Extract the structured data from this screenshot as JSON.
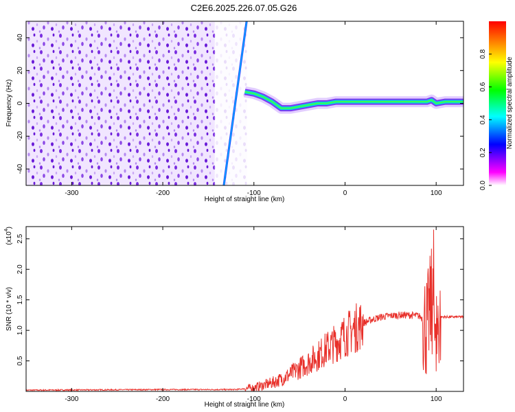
{
  "figure_title": "C2E6.2025.226.07.05.G26",
  "colors": {
    "snr_line": "#e8302a",
    "track_low": "#6a1bd8",
    "colorbar": [
      "#ffffff",
      "#ff00ff",
      "#0000ff",
      "#00ffff",
      "#00ff00",
      "#ffff00",
      "#ff0000"
    ]
  },
  "chart_data": [
    {
      "type": "heatmap",
      "title": "",
      "xlabel": "Height of straight line (km)",
      "ylabel": "Frequency (Hz)",
      "xlim": [
        -350,
        130
      ],
      "ylim": [
        -50,
        50
      ],
      "x_ticks": [
        "-300",
        "-200",
        "-100",
        "0",
        "100"
      ],
      "x_tick_values": [
        -300,
        -200,
        -100,
        0,
        100
      ],
      "y_ticks": [
        "-40",
        "-20",
        "0",
        "20",
        "40"
      ],
      "y_tick_values": [
        -40,
        -20,
        0,
        20,
        40
      ],
      "colorbar": {
        "label": "Normalized spectral amplitude",
        "range": [
          0,
          1
        ],
        "ticks": [
          "0.0",
          "0.2",
          "0.4",
          "0.6",
          "0.8"
        ],
        "tick_values": [
          0.0,
          0.2,
          0.4,
          0.6,
          0.8
        ]
      },
      "features": {
        "noise_region_x": [
          -350,
          -108
        ],
        "clear_band_x": [
          -143,
          -108
        ],
        "diagonal_track": {
          "x": [
            -133,
            -108
          ],
          "y": [
            -50,
            50
          ]
        },
        "signal_track": {
          "x": [
            -110,
            -100,
            -90,
            -80,
            -70,
            -60,
            -50,
            -40,
            -30,
            -20,
            -10,
            0,
            20,
            40,
            60,
            80,
            90,
            95,
            100,
            110,
            130
          ],
          "y": [
            7,
            6,
            4,
            1,
            -3,
            -3,
            -2,
            -1,
            0,
            0,
            1,
            1,
            1,
            1,
            1,
            1,
            1,
            2,
            0,
            1,
            1
          ]
        }
      }
    },
    {
      "type": "line",
      "title": "",
      "xlabel": "Height of straight line (km)",
      "ylabel": "SNR (10 * v/v)",
      "y_scale_label": "(x10",
      "y_scale_exp": "4",
      "y_scale_close": ")",
      "xlim": [
        -350,
        130
      ],
      "ylim": [
        0,
        2.7
      ],
      "x_ticks": [
        "-300",
        "-200",
        "-100",
        "0",
        "100"
      ],
      "x_tick_values": [
        -300,
        -200,
        -100,
        0,
        100
      ],
      "y_ticks": [
        "0.5",
        "1.0",
        "1.5",
        "2.0",
        "2.5"
      ],
      "y_tick_values": [
        0.5,
        1.0,
        1.5,
        2.0,
        2.5
      ],
      "series": [
        {
          "x": [
            -350,
            -200,
            -120,
            -100,
            -90,
            -80,
            -70,
            -60,
            -50,
            -40,
            -30,
            -20,
            -10,
            0,
            10,
            20,
            30,
            40,
            50,
            60,
            70,
            80,
            85,
            90,
            95,
            100,
            105,
            110,
            120,
            130
          ],
          "y": [
            0.02,
            0.03,
            0.03,
            0.06,
            0.1,
            0.14,
            0.2,
            0.28,
            0.38,
            0.48,
            0.58,
            0.7,
            0.8,
            0.92,
            1.02,
            1.12,
            1.18,
            1.22,
            1.24,
            1.25,
            1.25,
            1.24,
            1.2,
            1.05,
            1.5,
            1.0,
            1.22,
            1.22,
            1.22,
            1.22
          ]
        }
      ]
    }
  ]
}
